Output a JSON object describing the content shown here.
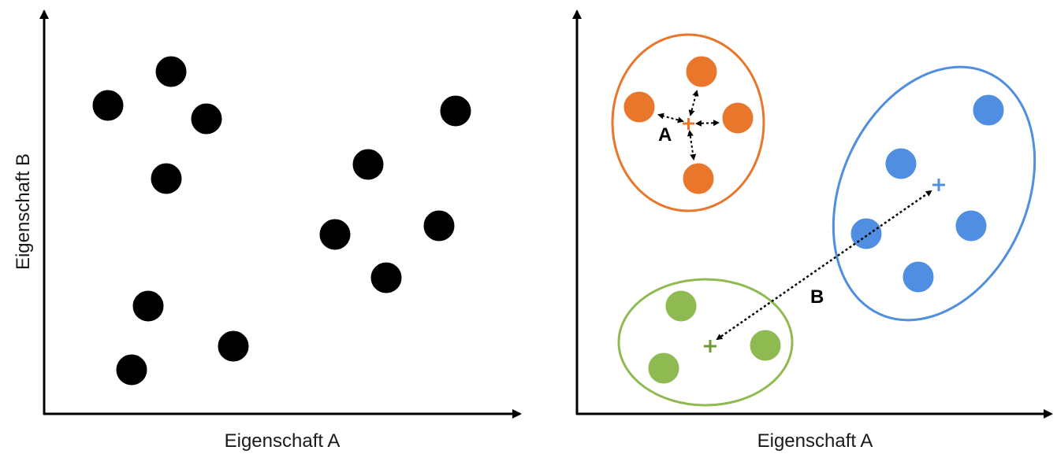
{
  "left_plot": {
    "xlabel": "Eigenschaft A",
    "ylabel": "Eigenschaft B",
    "point_color": "#000000"
  },
  "right_plot": {
    "xlabel": "Eigenschaft A",
    "distance_labels": {
      "intra": "A",
      "inter": "B"
    },
    "clusters": [
      {
        "name": "orange",
        "color": "#e8762b",
        "points": 4
      },
      {
        "name": "blue",
        "color": "#4f8ee0",
        "points": 5
      },
      {
        "name": "green",
        "color": "#8fba51",
        "points": 3
      }
    ]
  }
}
